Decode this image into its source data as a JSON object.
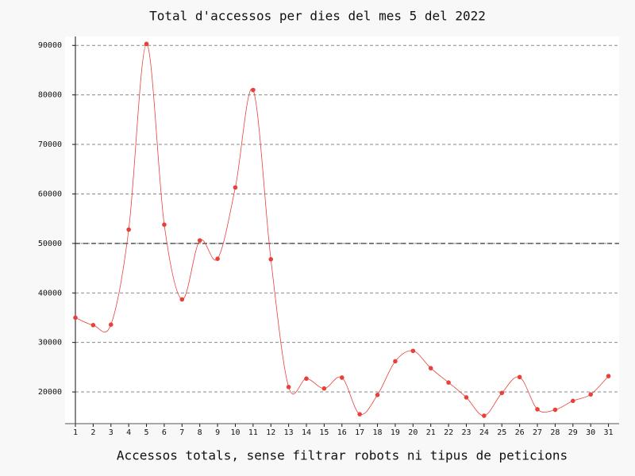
{
  "chart_data": {
    "type": "line",
    "title": "Total d'accessos per dies del mes 5 del 2022",
    "x_label": "Accessos totals, sense filtrar robots ni tipus de peticions",
    "x": [
      1,
      2,
      3,
      4,
      5,
      6,
      7,
      8,
      9,
      10,
      11,
      12,
      13,
      14,
      15,
      16,
      17,
      18,
      19,
      20,
      21,
      22,
      23,
      24,
      25,
      26,
      27,
      28,
      29,
      30,
      31
    ],
    "series": [
      {
        "name": "Accessos",
        "color": "#e8413c",
        "values": [
          35000,
          33500,
          33600,
          52800,
          90300,
          53800,
          38700,
          50600,
          46900,
          61300,
          81000,
          46800,
          21000,
          22700,
          20700,
          22900,
          15500,
          19400,
          26200,
          28300,
          24800,
          21900,
          18900,
          15200,
          19800,
          23000,
          16500,
          16400,
          18200,
          19500,
          23200
        ]
      }
    ],
    "xlim": [
      1,
      31.6
    ],
    "xticks": [
      1,
      2,
      3,
      4,
      5,
      6,
      7,
      8,
      9,
      10,
      11,
      12,
      13,
      14,
      15,
      16,
      17,
      18,
      19,
      20,
      21,
      22,
      23,
      24,
      25,
      26,
      27,
      28,
      29,
      30,
      31
    ],
    "ylim": [
      13600,
      91800
    ],
    "yticks": [
      20000,
      30000,
      40000,
      50000,
      60000,
      70000,
      80000,
      90000
    ],
    "reference_line": 50000,
    "grid": true
  }
}
